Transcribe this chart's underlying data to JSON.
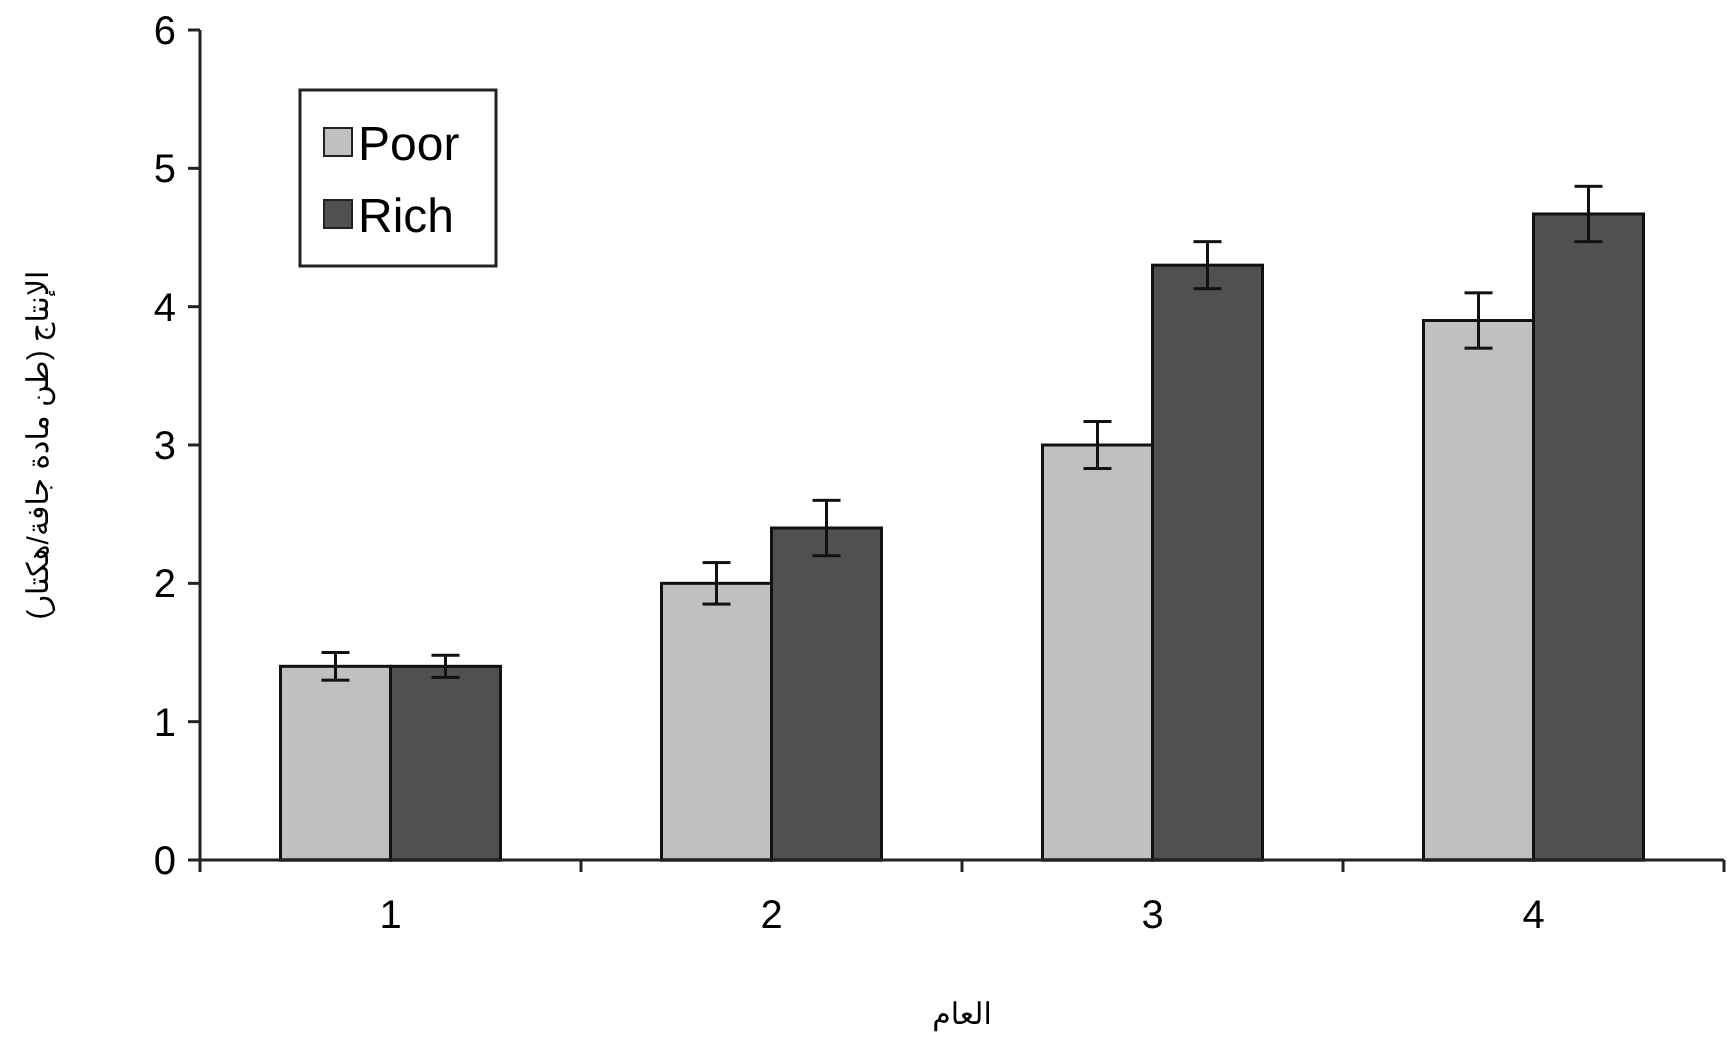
{
  "chart_data": {
    "type": "bar",
    "categories": [
      "1",
      "2",
      "3",
      "4"
    ],
    "series": [
      {
        "name": "Poor",
        "color": "#c0c0c0",
        "values": [
          1.4,
          2.0,
          3.0,
          3.9
        ],
        "errors": [
          0.1,
          0.15,
          0.17,
          0.2
        ]
      },
      {
        "name": "Rich",
        "color": "#505050",
        "values": [
          1.4,
          2.4,
          4.3,
          4.67
        ],
        "errors": [
          0.08,
          0.2,
          0.17,
          0.2
        ]
      }
    ],
    "xlabel": "العام",
    "ylabel": "الإنتاج (طن مادة جافة/هكتار)",
    "ylim": [
      0,
      6
    ],
    "yticks": [
      0,
      1,
      2,
      3,
      4,
      5,
      6
    ],
    "legend": "top left",
    "grid": false
  }
}
